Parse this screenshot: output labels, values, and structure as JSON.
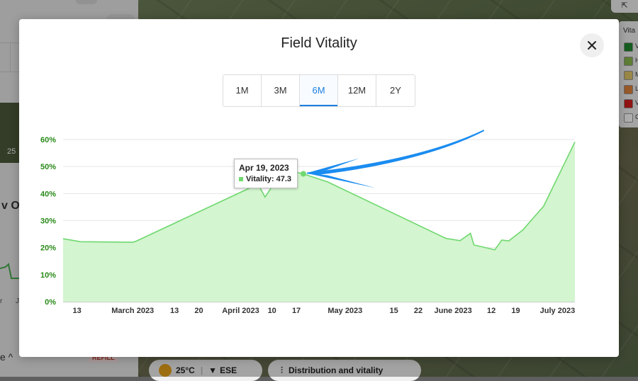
{
  "background": {
    "left_panel": {
      "thumb_label": "25",
      "section_title_partial": "v Ov",
      "mini_ticks": [
        "r",
        "J"
      ],
      "bottom_label": "e ^",
      "refill_badge": "REFILL"
    },
    "bottom_bar": {
      "temperature": "25°C",
      "wind": "ESE",
      "distribution_button": "Distribution and vitality"
    },
    "legend_panel": {
      "title": "Vita",
      "items": [
        {
          "color": "#1e8a2e",
          "label": "V"
        },
        {
          "color": "#8bb84f",
          "label": "H"
        },
        {
          "color": "#e3c86a",
          "label": "M"
        },
        {
          "color": "#e0833a",
          "label": "L"
        },
        {
          "color": "#d41e1e",
          "label": "V"
        },
        {
          "color": "#ffffff",
          "label": "C"
        }
      ]
    }
  },
  "modal": {
    "title": "Field Vitality",
    "close_icon": "close-icon",
    "tabs": [
      {
        "label": "1M",
        "active": false
      },
      {
        "label": "3M",
        "active": false
      },
      {
        "label": "6M",
        "active": true
      },
      {
        "label": "12M",
        "active": false
      },
      {
        "label": "2Y",
        "active": false
      }
    ],
    "tooltip": {
      "date": "Apr 19, 2023",
      "value_label": "Vitality: 47.3"
    },
    "annotation": "blue-arrow pointing at tooltip point",
    "accent_color": "#1a7fe0"
  },
  "chart_data": {
    "type": "area",
    "title": "",
    "xlabel": "",
    "ylabel": "",
    "series_color": "#6fd86f",
    "fill_color": "#d3f5cf",
    "grid": true,
    "ylim": [
      0,
      60
    ],
    "y_ticks": [
      "0%",
      "10%",
      "20%",
      "30%",
      "40%",
      "50%",
      "60%"
    ],
    "x_tick_labels": [
      {
        "label": "13",
        "date": "2023-02-13"
      },
      {
        "label": "March 2023",
        "date": "2023-03-01"
      },
      {
        "label": "13",
        "date": "2023-03-13"
      },
      {
        "label": "20",
        "date": "2023-03-20"
      },
      {
        "label": "April 2023",
        "date": "2023-04-01"
      },
      {
        "label": "10",
        "date": "2023-04-10"
      },
      {
        "label": "17",
        "date": "2023-04-17"
      },
      {
        "label": "May 2023",
        "date": "2023-05-01"
      },
      {
        "label": "15",
        "date": "2023-05-15"
      },
      {
        "label": "22",
        "date": "2023-05-22"
      },
      {
        "label": "June 2023",
        "date": "2023-06-01"
      },
      {
        "label": "12",
        "date": "2023-06-12"
      },
      {
        "label": "19",
        "date": "2023-06-19"
      },
      {
        "label": "July 2023",
        "date": "2023-07-01"
      }
    ],
    "points": [
      {
        "x": "2023-02-09",
        "y": 23.3
      },
      {
        "x": "2023-02-14",
        "y": 22.2
      },
      {
        "x": "2023-03-01",
        "y": 22.0
      },
      {
        "x": "2023-03-02",
        "y": 22.4
      },
      {
        "x": "2023-04-06",
        "y": 43.5
      },
      {
        "x": "2023-04-08",
        "y": 38.7
      },
      {
        "x": "2023-04-11",
        "y": 44.5
      },
      {
        "x": "2023-04-15",
        "y": 48.5
      },
      {
        "x": "2023-04-19",
        "y": 47.3
      },
      {
        "x": "2023-04-26",
        "y": 44.3
      },
      {
        "x": "2023-05-30",
        "y": 23.4
      },
      {
        "x": "2023-06-03",
        "y": 22.6
      },
      {
        "x": "2023-06-06",
        "y": 25.3
      },
      {
        "x": "2023-06-07",
        "y": 21.0
      },
      {
        "x": "2023-06-13",
        "y": 19.2
      },
      {
        "x": "2023-06-15",
        "y": 22.8
      },
      {
        "x": "2023-06-17",
        "y": 22.5
      },
      {
        "x": "2023-06-21",
        "y": 26.5
      },
      {
        "x": "2023-06-27",
        "y": 35.3
      },
      {
        "x": "2023-07-06",
        "y": 59.1
      }
    ],
    "highlighted_point": {
      "x": "2023-04-19",
      "y": 47.3
    }
  }
}
